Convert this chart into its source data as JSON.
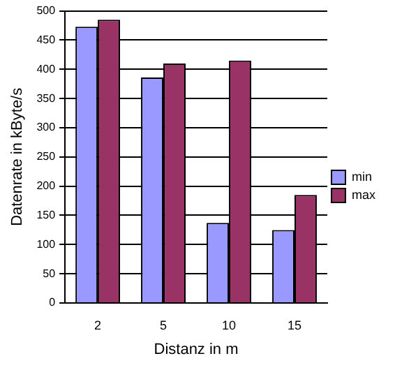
{
  "chart_data": {
    "type": "bar",
    "xlabel": "Distanz in m",
    "ylabel": "Datenrate in kByte/s",
    "categories": [
      "2",
      "5",
      "10",
      "15"
    ],
    "series": [
      {
        "name": "min",
        "color": "#9999ff",
        "values": [
          473,
          386,
          137,
          125
        ]
      },
      {
        "name": "max",
        "color": "#993366",
        "values": [
          485,
          410,
          415,
          185
        ]
      }
    ],
    "ylim": [
      0,
      500
    ],
    "yticks": [
      0,
      50,
      100,
      150,
      200,
      250,
      300,
      350,
      400,
      450,
      500
    ],
    "grid": "y",
    "legend": "right"
  }
}
